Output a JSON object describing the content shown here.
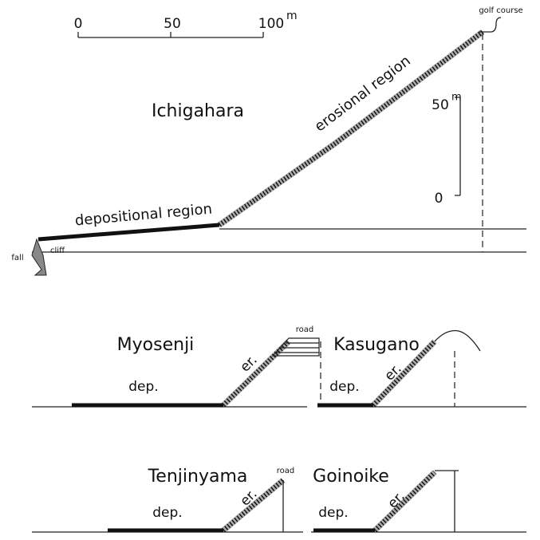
{
  "scale_bar": {
    "ticks": [
      "0",
      "50",
      "100"
    ],
    "unit": "m"
  },
  "main_profile": {
    "site": "Ichigahara",
    "top_label": "golf course",
    "erosional_label": "erosional region",
    "depositional_label": "depositional region",
    "fall_label": "fall",
    "cliff_label": "cliff",
    "vertical_scale": {
      "top": "50",
      "unit": "m",
      "bottom": "0"
    }
  },
  "profiles": [
    {
      "site": "Myosenji",
      "dep": "dep.",
      "er": "er.",
      "top_label": "road"
    },
    {
      "site": "Kasugano",
      "dep": "dep.",
      "er": "er."
    },
    {
      "site": "Tenjinyama",
      "dep": "dep.",
      "er": "er.",
      "top_label": "road"
    },
    {
      "site": "Goinoike",
      "dep": "dep.",
      "er": "er."
    }
  ]
}
